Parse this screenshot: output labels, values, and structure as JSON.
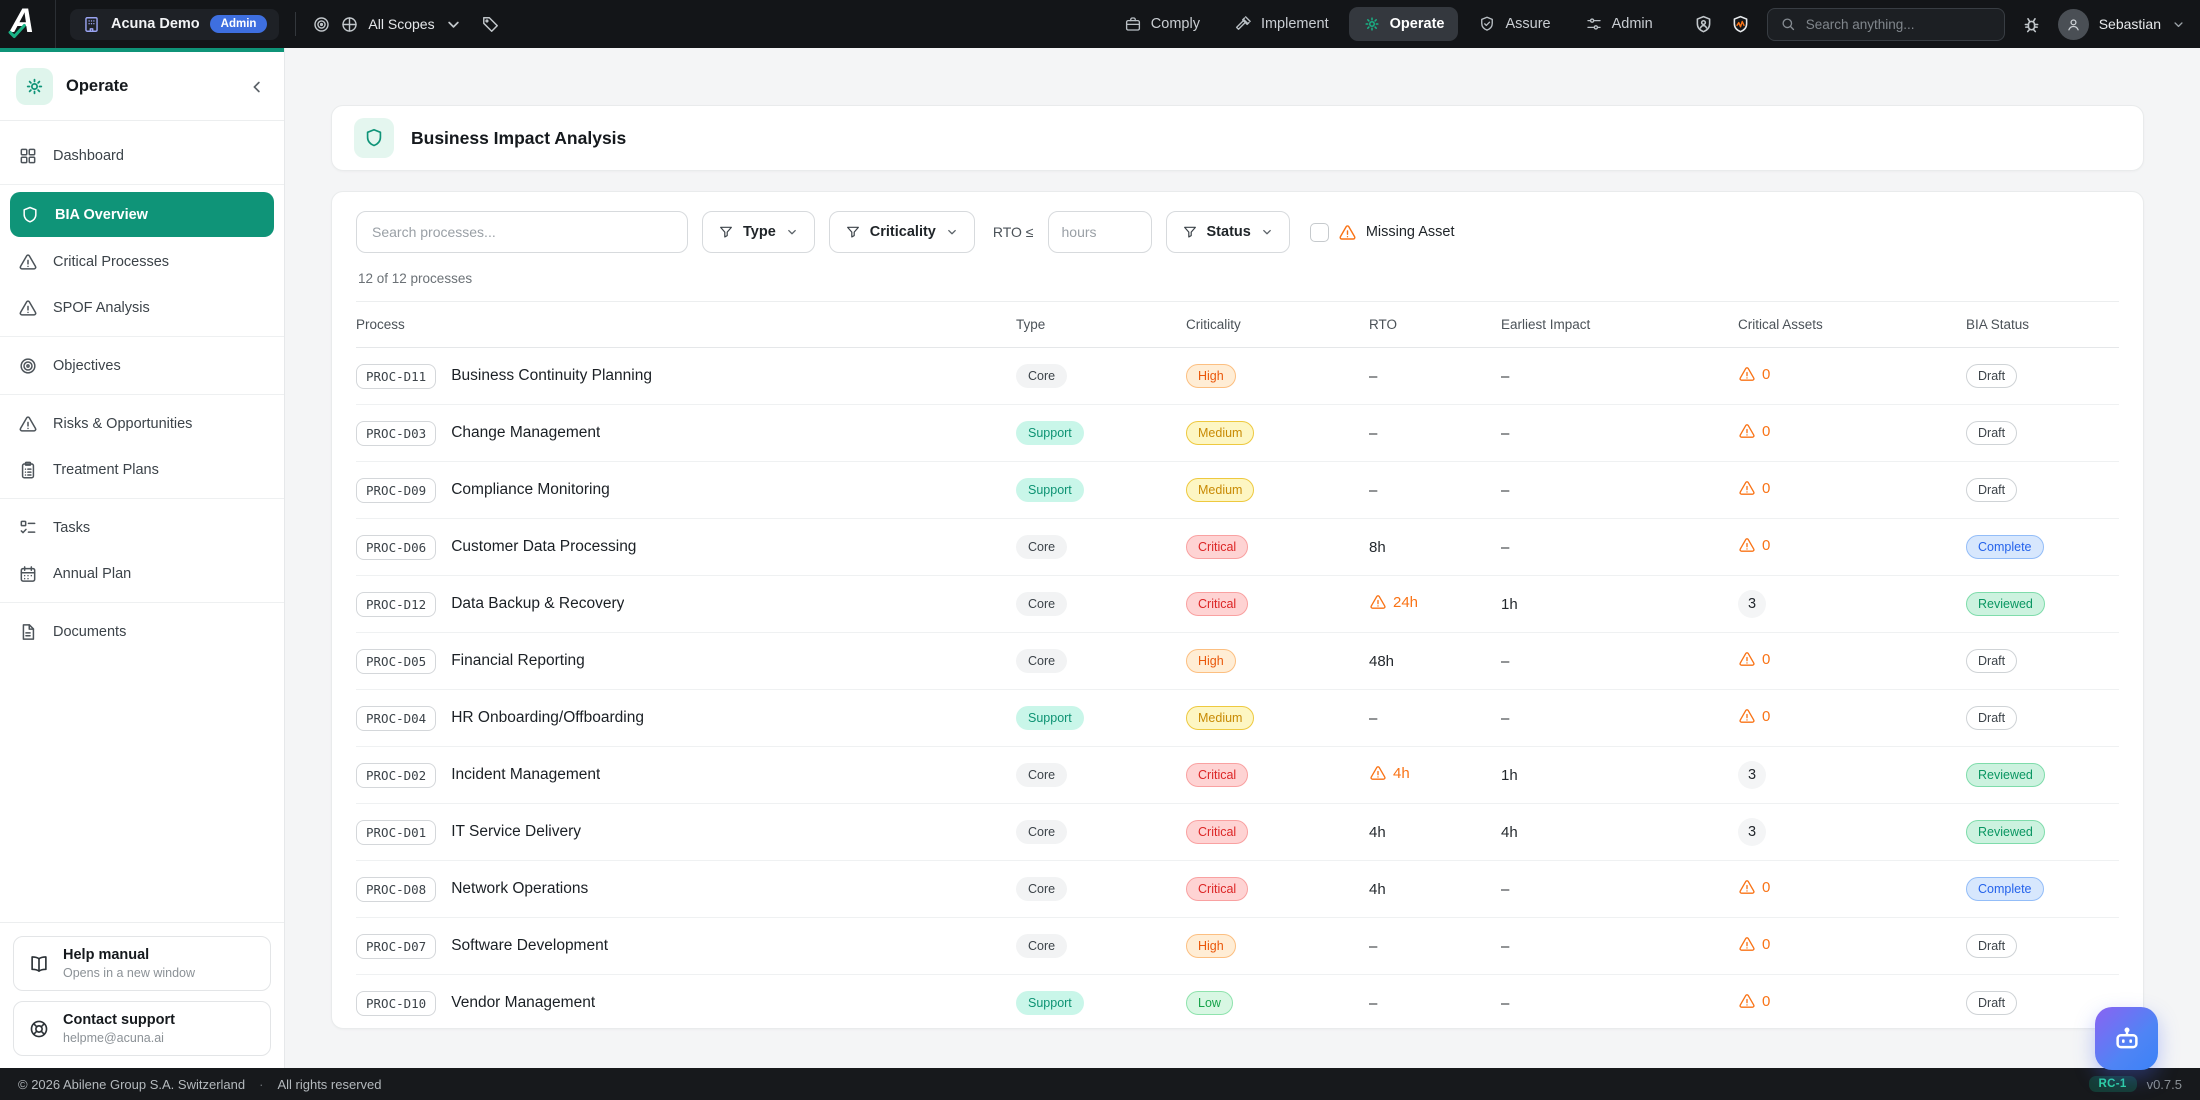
{
  "topbar": {
    "logo_letter": "A",
    "org_name": "Acuna Demo",
    "org_badge": "Admin",
    "scopes_label": "All Scopes",
    "nav": [
      {
        "label": "Comply",
        "icon": "briefcase",
        "active": false
      },
      {
        "label": "Implement",
        "icon": "hammer",
        "active": false
      },
      {
        "label": "Operate",
        "icon": "gear",
        "active": true
      },
      {
        "label": "Assure",
        "icon": "shield-check",
        "active": false
      },
      {
        "label": "Admin",
        "icon": "sliders",
        "active": false
      }
    ],
    "search_placeholder": "Search anything...",
    "user_name": "Sebastian"
  },
  "sidebar": {
    "title": "Operate",
    "groups": [
      [
        {
          "label": "Dashboard",
          "icon": "grid",
          "active": false
        }
      ],
      [
        {
          "label": "BIA Overview",
          "icon": "shield",
          "active": true
        },
        {
          "label": "Critical Processes",
          "icon": "warning",
          "active": false
        },
        {
          "label": "SPOF Analysis",
          "icon": "warning",
          "active": false
        }
      ],
      [
        {
          "label": "Objectives",
          "icon": "target",
          "active": false
        }
      ],
      [
        {
          "label": "Risks & Opportunities",
          "icon": "warning",
          "active": false
        },
        {
          "label": "Treatment Plans",
          "icon": "clipboard",
          "active": false
        }
      ],
      [
        {
          "label": "Tasks",
          "icon": "tasks",
          "active": false
        },
        {
          "label": "Annual Plan",
          "icon": "calendar",
          "active": false
        }
      ],
      [
        {
          "label": "Documents",
          "icon": "document",
          "active": false
        }
      ]
    ],
    "help_title": "Help manual",
    "help_subtitle": "Opens in a new window",
    "support_title": "Contact support",
    "support_subtitle": "helpme@acuna.ai"
  },
  "page": {
    "title": "Business Impact Analysis"
  },
  "filters": {
    "search_placeholder": "Search processes...",
    "type_label": "Type",
    "criticality_label": "Criticality",
    "rto_label": "RTO ≤",
    "rto_placeholder": "hours",
    "status_label": "Status",
    "missing_asset_label": "Missing Asset",
    "count_text": "12 of 12 processes"
  },
  "table": {
    "columns": [
      "Process",
      "Type",
      "Criticality",
      "RTO",
      "Earliest Impact",
      "Critical Assets",
      "BIA Status"
    ],
    "rows": [
      {
        "id": "PROC-D11",
        "name": "Business Continuity Planning",
        "type": "Core",
        "criticality": "High",
        "rto": "–",
        "rto_warning": false,
        "earliest_impact": "–",
        "critical_assets": "0",
        "assets_warning": true,
        "status": "Draft"
      },
      {
        "id": "PROC-D03",
        "name": "Change Management",
        "type": "Support",
        "criticality": "Medium",
        "rto": "–",
        "rto_warning": false,
        "earliest_impact": "–",
        "critical_assets": "0",
        "assets_warning": true,
        "status": "Draft"
      },
      {
        "id": "PROC-D09",
        "name": "Compliance Monitoring",
        "type": "Support",
        "criticality": "Medium",
        "rto": "–",
        "rto_warning": false,
        "earliest_impact": "–",
        "critical_assets": "0",
        "assets_warning": true,
        "status": "Draft"
      },
      {
        "id": "PROC-D06",
        "name": "Customer Data Processing",
        "type": "Core",
        "criticality": "Critical",
        "rto": "8h",
        "rto_warning": false,
        "earliest_impact": "–",
        "critical_assets": "0",
        "assets_warning": true,
        "status": "Complete"
      },
      {
        "id": "PROC-D12",
        "name": "Data Backup & Recovery",
        "type": "Core",
        "criticality": "Critical",
        "rto": "24h",
        "rto_warning": true,
        "earliest_impact": "1h",
        "critical_assets": "3",
        "assets_warning": false,
        "status": "Reviewed"
      },
      {
        "id": "PROC-D05",
        "name": "Financial Reporting",
        "type": "Core",
        "criticality": "High",
        "rto": "48h",
        "rto_warning": false,
        "earliest_impact": "–",
        "critical_assets": "0",
        "assets_warning": true,
        "status": "Draft"
      },
      {
        "id": "PROC-D04",
        "name": "HR Onboarding/Offboarding",
        "type": "Support",
        "criticality": "Medium",
        "rto": "–",
        "rto_warning": false,
        "earliest_impact": "–",
        "critical_assets": "0",
        "assets_warning": true,
        "status": "Draft"
      },
      {
        "id": "PROC-D02",
        "name": "Incident Management",
        "type": "Core",
        "criticality": "Critical",
        "rto": "4h",
        "rto_warning": true,
        "earliest_impact": "1h",
        "critical_assets": "3",
        "assets_warning": false,
        "status": "Reviewed"
      },
      {
        "id": "PROC-D01",
        "name": "IT Service Delivery",
        "type": "Core",
        "criticality": "Critical",
        "rto": "4h",
        "rto_warning": false,
        "earliest_impact": "4h",
        "critical_assets": "3",
        "assets_warning": false,
        "status": "Reviewed"
      },
      {
        "id": "PROC-D08",
        "name": "Network Operations",
        "type": "Core",
        "criticality": "Critical",
        "rto": "4h",
        "rto_warning": false,
        "earliest_impact": "–",
        "critical_assets": "0",
        "assets_warning": true,
        "status": "Complete"
      },
      {
        "id": "PROC-D07",
        "name": "Software Development",
        "type": "Core",
        "criticality": "High",
        "rto": "–",
        "rto_warning": false,
        "earliest_impact": "–",
        "critical_assets": "0",
        "assets_warning": true,
        "status": "Draft"
      },
      {
        "id": "PROC-D10",
        "name": "Vendor Management",
        "type": "Support",
        "criticality": "Low",
        "rto": "–",
        "rto_warning": false,
        "earliest_impact": "–",
        "critical_assets": "0",
        "assets_warning": true,
        "status": "Draft"
      }
    ]
  },
  "footer": {
    "copyright": "© 2026 Abilene Group S.A. Switzerland",
    "separator": "·",
    "rights": "All rights reserved",
    "release": "RC-1",
    "version": "v0.7.5"
  },
  "colors": {
    "accent": "#0f9478",
    "warning": "#f97316",
    "admin_badge": "#3e6fe0",
    "topbar_bg": "#131518",
    "complete": "#2563eb",
    "reviewed": "#0a9662",
    "critical": "#dc2626"
  }
}
